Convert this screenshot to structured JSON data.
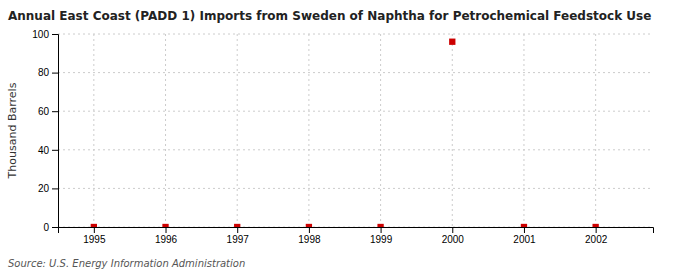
{
  "chart_data": {
    "type": "scatter",
    "title": "Annual East Coast (PADD 1) Imports from Sweden of Naphtha for Petrochemical Feedstock Use",
    "ylabel": "Thousand Barrels",
    "source": "Source: U.S. Energy Information Administration",
    "x": [
      1995,
      1996,
      1997,
      1998,
      1999,
      2000,
      2001,
      2002
    ],
    "values": [
      0,
      0,
      0,
      0,
      0,
      96,
      0,
      0
    ],
    "color": "#cc0000",
    "marker": "square",
    "xlim": [
      1994.5,
      2002.8
    ],
    "xticks": [
      1995,
      1996,
      1997,
      1998,
      1999,
      2000,
      2001,
      2002
    ],
    "ylim": [
      0,
      100
    ],
    "yticks": [
      0,
      20,
      40,
      60,
      80,
      100
    ],
    "grid": true
  }
}
